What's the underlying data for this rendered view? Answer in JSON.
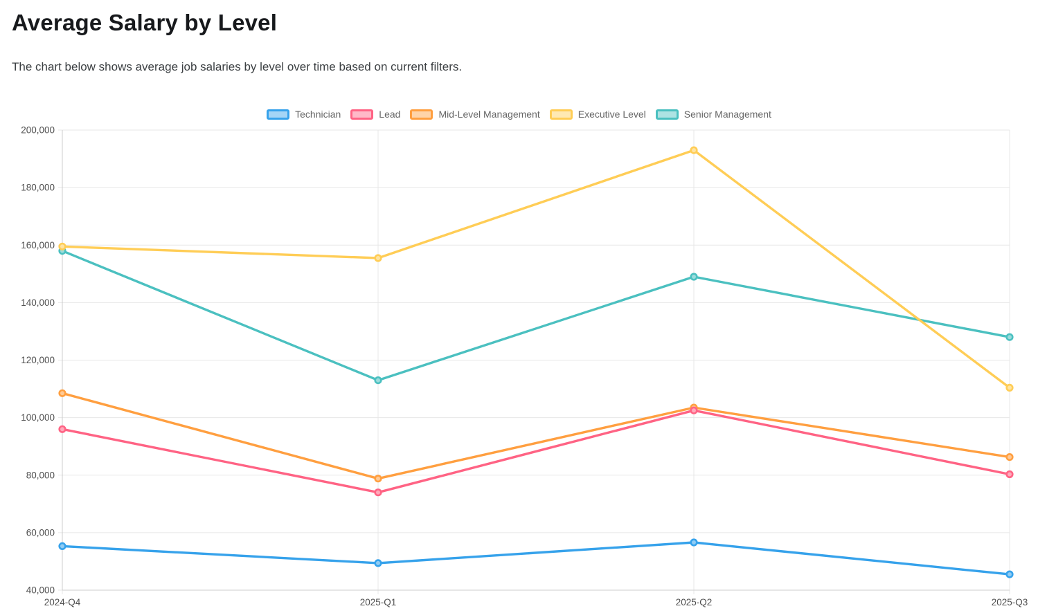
{
  "page": {
    "title": "Average Salary by Level",
    "subtitle": "The chart below shows average job salaries by level over time based on current filters."
  },
  "chart_data": {
    "type": "line",
    "title": "Average Salary by Level",
    "xlabel": "",
    "ylabel": "",
    "categories": [
      "2024-Q4",
      "2025-Q1",
      "2025-Q2",
      "2025-Q3"
    ],
    "series": [
      {
        "name": "Technician",
        "color": "#36A2EB",
        "values": [
          55300,
          49400,
          56600,
          45500
        ]
      },
      {
        "name": "Lead",
        "color": "#FF6384",
        "values": [
          96000,
          74000,
          102500,
          80300
        ]
      },
      {
        "name": "Mid-Level Management",
        "color": "#FF9F40",
        "values": [
          108500,
          78800,
          103500,
          86300
        ]
      },
      {
        "name": "Executive Level",
        "color": "#FFCD56",
        "values": [
          159500,
          155500,
          193000,
          110400
        ]
      },
      {
        "name": "Senior Management",
        "color": "#4BC0C0",
        "values": [
          158000,
          113000,
          149000,
          128000
        ]
      }
    ],
    "ylim": [
      40000,
      200000
    ],
    "yticks": [
      {
        "value": 40000,
        "label": "40,000"
      },
      {
        "value": 60000,
        "label": "60,000"
      },
      {
        "value": 80000,
        "label": "80,000"
      },
      {
        "value": 100000,
        "label": "100,000"
      },
      {
        "value": 120000,
        "label": "120,000"
      },
      {
        "value": 140000,
        "label": "140,000"
      },
      {
        "value": 160000,
        "label": "160,000"
      },
      {
        "value": 180000,
        "label": "180,000"
      },
      {
        "value": 200000,
        "label": "200,000"
      }
    ],
    "grid": true,
    "legend_position": "top"
  },
  "theme": {
    "background": "#ffffff",
    "grid_color": "#e7e7e7",
    "axis_border_color": "#cccccc",
    "tick_label_color": "#4f4f4f",
    "legend_label_color": "#666666",
    "title_color": "#17191c",
    "subtitle_color": "#3c4043",
    "series_fill_alpha": 0.45
  }
}
